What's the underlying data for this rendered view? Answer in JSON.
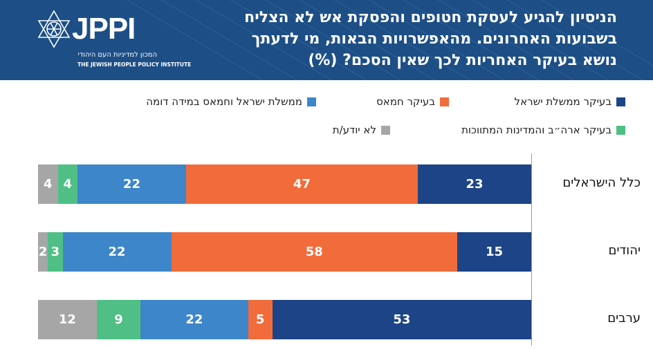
{
  "header": {
    "title_lines": [
      "הניסיון להגיע לעסקת חטופים והפסקת אש לא הצליח",
      "בשבועות האחרונים. מהאפשרויות הבאות, מי לדעתך",
      "נושא בעיקר האחריות לכך שאין הסכם? (%)"
    ],
    "logo": {
      "mark": "JPPI",
      "hebrew": "המכון למדיניות העם היהודי",
      "english": "THE JEWISH PEOPLE POLICY INSTITUTE"
    }
  },
  "colors": {
    "header_bg": "#1d4f86",
    "israel_gov": "#1c4487",
    "hamas": "#f26b3a",
    "both": "#3d86c9",
    "us_mediators": "#4fbf85",
    "dont_know": "#a6a6a6"
  },
  "chart_data": {
    "type": "bar",
    "orientation": "horizontal",
    "stacked": true,
    "direction": "right-to-left",
    "categories": [
      "כלל הישראלים",
      "יהודים",
      "ערבים"
    ],
    "series": [
      {
        "key": "israel_gov",
        "name": "בעיקר ממשלת ישראל",
        "values": [
          23,
          15,
          53
        ]
      },
      {
        "key": "hamas",
        "name": "בעיקר חמאס",
        "values": [
          47,
          58,
          5
        ]
      },
      {
        "key": "both",
        "name": "ממשלת ישראל וחמאס במידה דומה",
        "values": [
          22,
          22,
          22
        ]
      },
      {
        "key": "us_mediators",
        "name": "בעיקר ארה״ב והמדינות המתווכות",
        "values": [
          4,
          3,
          9
        ]
      },
      {
        "key": "dont_know",
        "name": "לא יודע/ת",
        "values": [
          4,
          2,
          12
        ]
      }
    ],
    "xlim": [
      0,
      100
    ],
    "legend": "top",
    "grid": false
  }
}
